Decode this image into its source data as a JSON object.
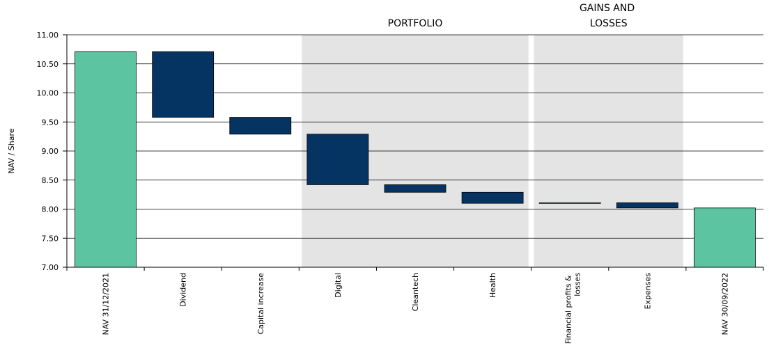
{
  "chart_data": {
    "type": "waterfall",
    "y_label": "NAV / Share",
    "categories": [
      "NAV 31/12/2021",
      "Dividend",
      "Capital increase",
      "Digital",
      "Cleantech",
      "Health",
      "Financial profits & losses",
      "Expenses",
      "NAV 30/09/2022"
    ],
    "values": [
      10.71,
      -1.13,
      -0.29,
      -0.87,
      -0.13,
      -0.19,
      0.01,
      -0.09,
      8.02
    ],
    "totals": [
      true,
      false,
      false,
      false,
      false,
      false,
      false,
      false,
      true
    ],
    "increase_color": "#5cc4a0",
    "decrease_color": "#063462",
    "total_color": "#5cc4a0",
    "sections": [
      {
        "label": "PORTFOLIO",
        "start": 3,
        "end": 5
      },
      {
        "label": "GAINS AND LOSSES",
        "start": 6,
        "end": 7
      }
    ],
    "ylim": [
      7,
      11
    ],
    "yticks": [
      {
        "value": 7,
        "label": "7.00"
      },
      {
        "value": 7.5,
        "label": "7.50"
      },
      {
        "value": 8,
        "label": "8.00"
      },
      {
        "value": 8.5,
        "label": "8.50"
      },
      {
        "value": 9,
        "label": "9.00"
      },
      {
        "value": 9.5,
        "label": "9.50"
      },
      {
        "value": 10,
        "label": "10.00"
      },
      {
        "value": 10.5,
        "label": "10.50"
      },
      {
        "value": 11,
        "label": "11.00"
      }
    ],
    "grid": true
  }
}
